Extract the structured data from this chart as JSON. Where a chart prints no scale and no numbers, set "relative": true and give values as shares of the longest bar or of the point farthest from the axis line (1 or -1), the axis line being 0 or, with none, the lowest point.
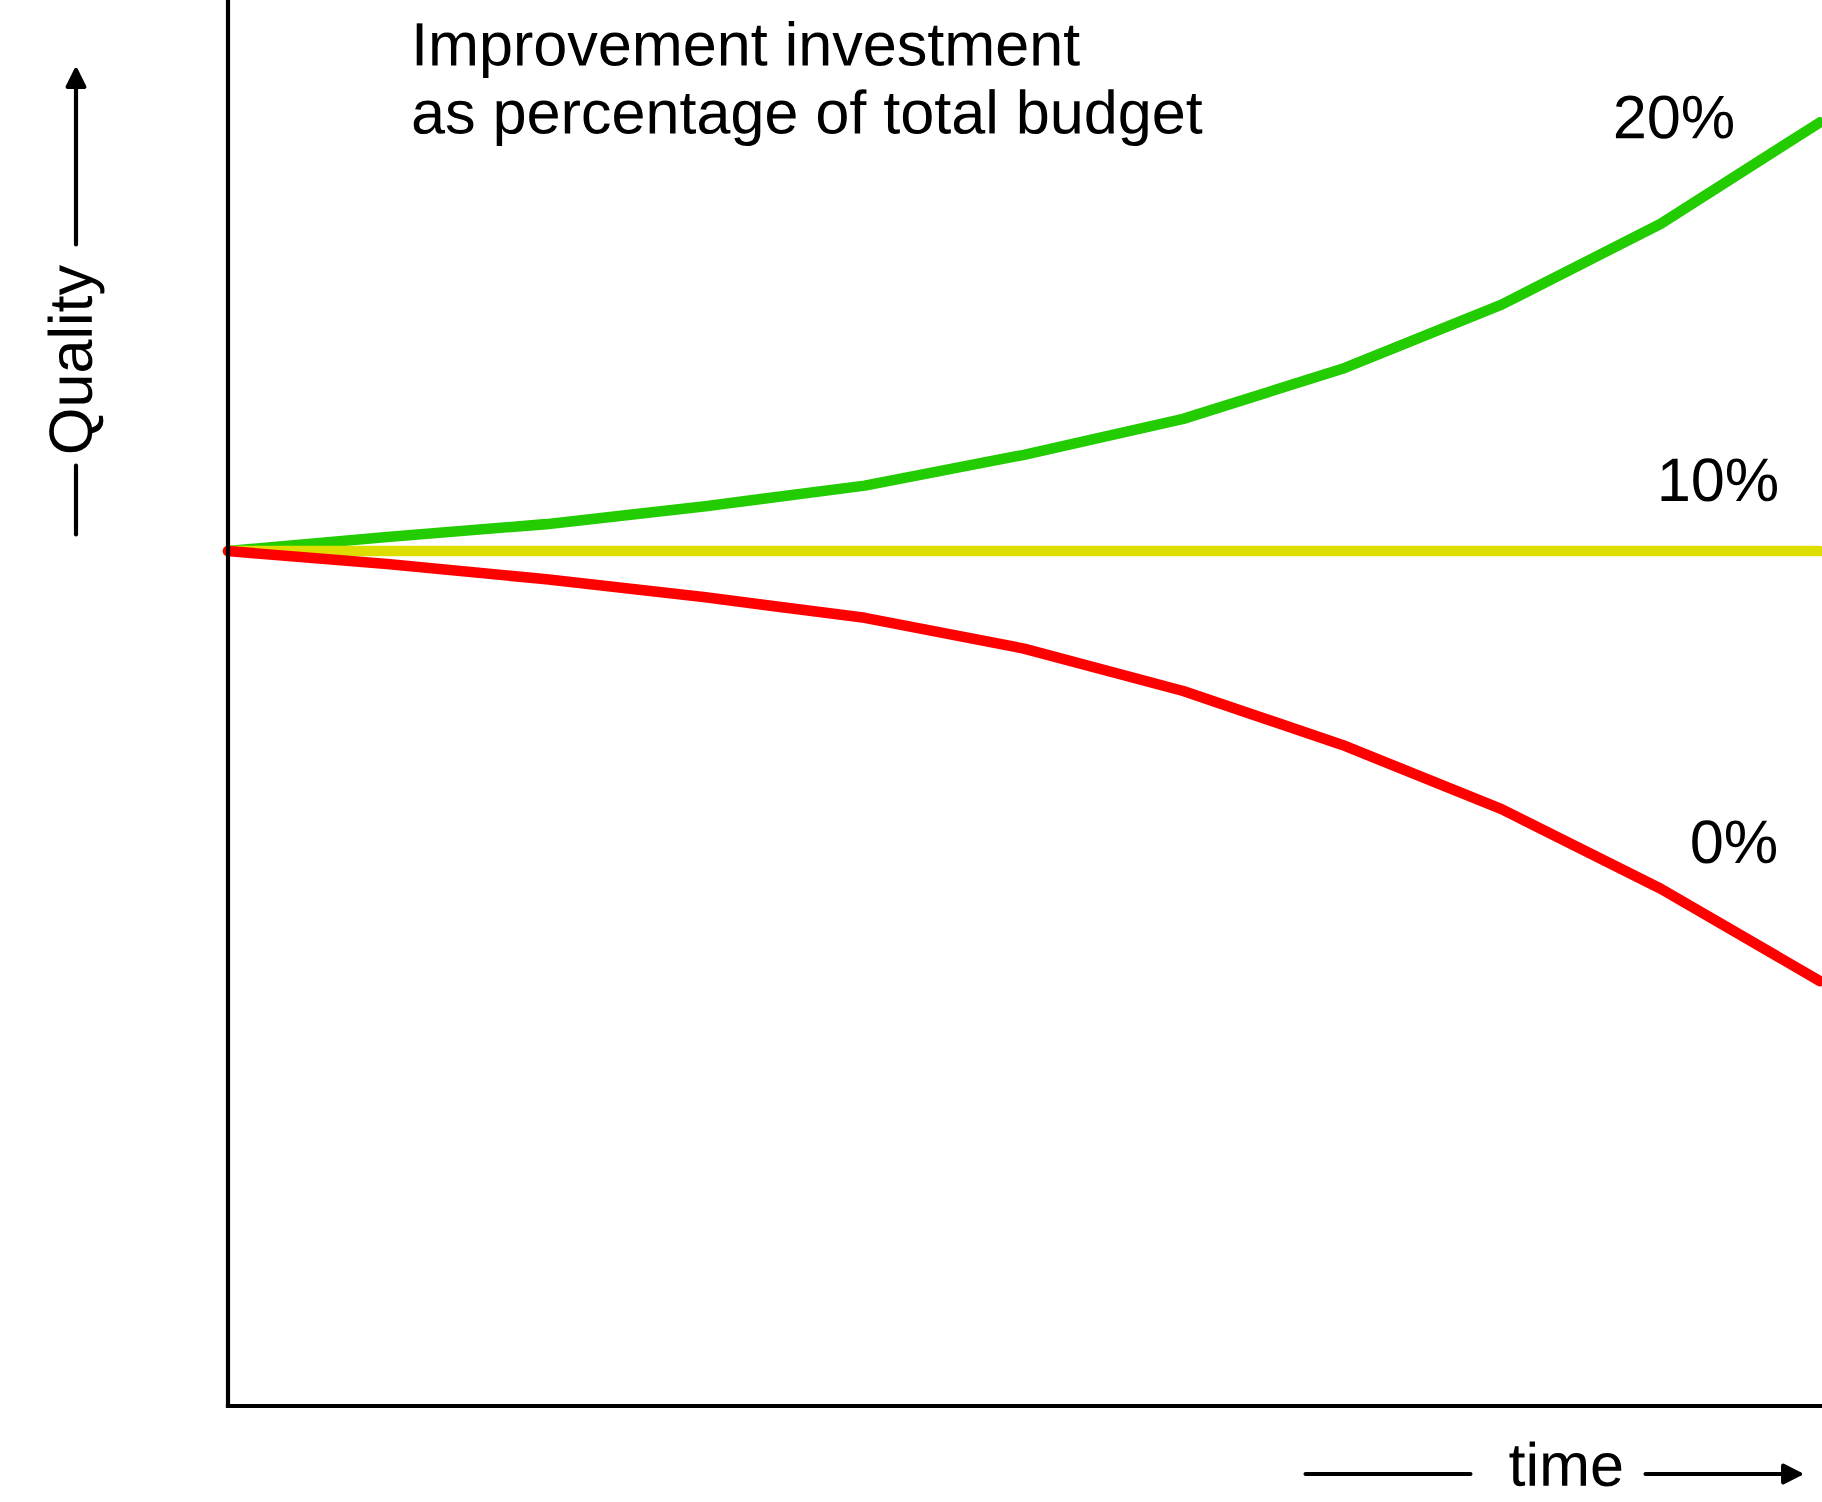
{
  "chart_data": {
    "type": "line",
    "relative": true,
    "title": "Improvement investment\nas percentage of total budget",
    "xlabel": "time",
    "ylabel": "Quality",
    "legend": false,
    "marker": "none",
    "line_style": "solid",
    "categories": [
      null,
      null,
      null,
      null,
      null,
      null,
      null,
      null,
      null,
      null,
      null
    ],
    "series": [
      {
        "name": "20%",
        "color": "#22cc00",
        "values": [
          0.666,
          0.677,
          0.687,
          0.701,
          0.717,
          0.741,
          0.769,
          0.808,
          0.858,
          0.921,
          1.0
        ]
      },
      {
        "name": "10%",
        "color": "#dddd00",
        "values": [
          0.666,
          0.666,
          0.666,
          0.666,
          0.666,
          0.666,
          0.666,
          0.666,
          0.666,
          0.666,
          0.666
        ]
      },
      {
        "name": "0%",
        "color": "#ff0000",
        "values": [
          0.666,
          0.656,
          0.644,
          0.63,
          0.614,
          0.59,
          0.557,
          0.515,
          0.465,
          0.403,
          0.331
        ]
      }
    ]
  }
}
